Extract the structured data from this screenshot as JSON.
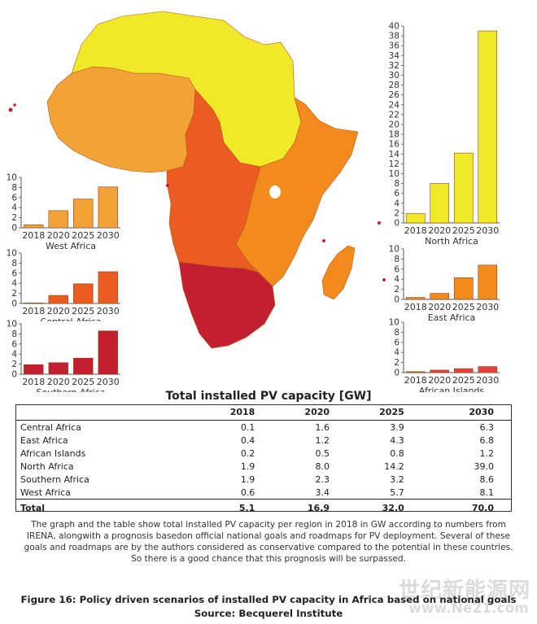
{
  "colors": {
    "north": "#f1e82a",
    "west": "#f2a236",
    "east": "#f28a1c",
    "central": "#ea5c22",
    "southern": "#c41f30",
    "islands": "#e64140"
  },
  "chart_data": [
    {
      "type": "bar",
      "title": "North Africa",
      "region": "north",
      "categories": [
        "2018",
        "2020",
        "2025",
        "2030"
      ],
      "values": [
        1.9,
        8.0,
        14.2,
        39.0
      ],
      "ylim": [
        0,
        40
      ],
      "yticks": [
        0,
        2,
        4,
        6,
        8,
        10,
        12,
        14,
        16,
        18,
        20,
        22,
        24,
        26,
        28,
        30,
        32,
        34,
        36,
        38,
        40
      ]
    },
    {
      "type": "bar",
      "title": "West Africa",
      "region": "west",
      "categories": [
        "2018",
        "2020",
        "2025",
        "2030"
      ],
      "values": [
        0.6,
        3.4,
        5.7,
        8.1
      ],
      "ylim": [
        0,
        10
      ],
      "yticks": [
        0,
        2,
        4,
        6,
        8,
        10
      ]
    },
    {
      "type": "bar",
      "title": "Central Africa",
      "region": "central",
      "categories": [
        "2018",
        "2020",
        "2025",
        "2030"
      ],
      "values": [
        0.1,
        1.6,
        3.9,
        6.3
      ],
      "ylim": [
        0,
        10
      ],
      "yticks": [
        0,
        2,
        4,
        6,
        8,
        10
      ]
    },
    {
      "type": "bar",
      "title": "Southern Africa",
      "region": "southern",
      "categories": [
        "2018",
        "2020",
        "2025",
        "2030"
      ],
      "values": [
        1.9,
        2.3,
        3.2,
        8.6
      ],
      "ylim": [
        0,
        10
      ],
      "yticks": [
        0,
        2,
        4,
        6,
        8,
        10
      ]
    },
    {
      "type": "bar",
      "title": "East Africa",
      "region": "east",
      "categories": [
        "2018",
        "2020",
        "2025",
        "2030"
      ],
      "values": [
        0.4,
        1.2,
        4.3,
        6.8
      ],
      "ylim": [
        0,
        10
      ],
      "yticks": [
        0,
        2,
        4,
        6,
        8,
        10
      ]
    },
    {
      "type": "bar",
      "title": "African Islands",
      "region": "islands",
      "categories": [
        "2018",
        "2020",
        "2025",
        "2030"
      ],
      "values": [
        0.2,
        0.5,
        0.8,
        1.2
      ],
      "ylim": [
        0,
        10
      ],
      "yticks": [
        0,
        2,
        4,
        6,
        8,
        10
      ]
    }
  ],
  "table": {
    "title": "Total installed PV capacity [GW]",
    "columns": [
      "",
      "2018",
      "2020",
      "2025",
      "2030"
    ],
    "rows": [
      [
        "Central Africa",
        "0.1",
        "1.6",
        "3.9",
        "6.3"
      ],
      [
        "East Africa",
        "0.4",
        "1.2",
        "4.3",
        "6.8"
      ],
      [
        "African Islands",
        "0.2",
        "0.5",
        "0.8",
        "1.2"
      ],
      [
        "North Africa",
        "1.9",
        "8.0",
        "14.2",
        "39.0"
      ],
      [
        "Southern Africa",
        "1.9",
        "2.3",
        "3.2",
        "8.6"
      ],
      [
        "West Africa",
        "0.6",
        "3.4",
        "5.7",
        "8.1"
      ]
    ],
    "total": [
      "Total",
      "5.1",
      "16.9",
      "32.0",
      "70.0"
    ]
  },
  "description": "The graph and the table show total installed PV capacity per region in 2018 in GW according to numbers from IRENA, alongwith a prognosis basedon official national goals and roadmaps for PV deployment. Several of these goals and roadmaps are by the authors considered as conservative compared to the potential in these countries. So there is a good chance that this prognosis will be surpassed.",
  "caption": {
    "line1": "Figure 16: Policy driven scenarios of installed PV capacity in Africa based on national goals",
    "line2": "Source: Becquerel Institute"
  },
  "watermark": {
    "line1": "世纪新能源网",
    "line2": "www.Ne21.com"
  }
}
